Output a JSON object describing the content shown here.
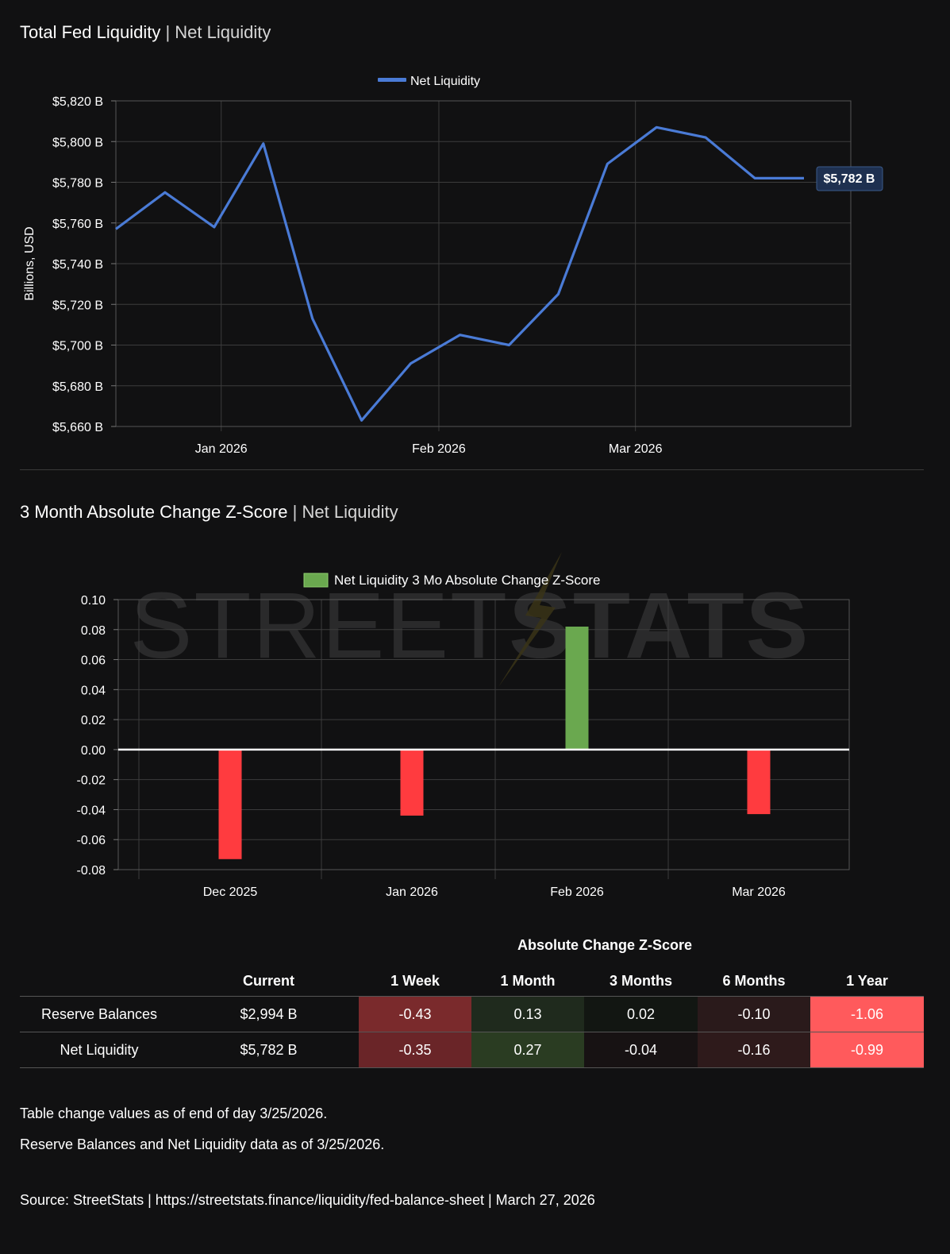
{
  "chart1": {
    "title": "Total Fed Liquidity",
    "subtitle": "Net Liquidity",
    "separator": "|",
    "legend": "Net Liquidity",
    "ylabel": "Billions, USD",
    "color": "#4a7bd6",
    "end_label": "$5,782 B"
  },
  "chart2": {
    "title": "3 Month Absolute Change Z-Score",
    "subtitle": "Net Liquidity",
    "separator": "|",
    "legend": "Net Liquidity 3 Mo Absolute Change Z-Score",
    "positive_color": "#6aa84f",
    "negative_color": "#ff3b3f",
    "watermark": "STREETSTATS"
  },
  "chart_data": [
    {
      "type": "line",
      "series": [
        {
          "name": "Net Liquidity",
          "x": [
            "2025-12-17",
            "2025-12-24",
            "2025-12-31",
            "2026-01-07",
            "2026-01-14",
            "2026-01-21",
            "2026-01-28",
            "2026-02-04",
            "2026-02-11",
            "2026-02-18",
            "2026-02-25",
            "2026-03-04",
            "2026-03-11",
            "2026-03-18",
            "2026-03-25"
          ],
          "values": [
            5757,
            5775,
            5758,
            5799,
            5713,
            5663,
            5691,
            5705,
            5700,
            5725,
            5789,
            5807,
            5802,
            5782,
            5782
          ]
        }
      ],
      "x_range": [
        "2025-12-17",
        "2026-03-25"
      ],
      "x_ticks": [
        {
          "date": "2026-01-01",
          "label": "Jan 2026"
        },
        {
          "date": "2026-02-01",
          "label": "Feb 2026"
        },
        {
          "date": "2026-03-01",
          "label": "Mar 2026"
        }
      ],
      "ylim": [
        5660,
        5820
      ],
      "y_ticks": [
        {
          "value": 5820,
          "label": "$5,820 B"
        },
        {
          "value": 5800,
          "label": "$5,800 B"
        },
        {
          "value": 5780,
          "label": "$5,780 B"
        },
        {
          "value": 5760,
          "label": "$5,760 B"
        },
        {
          "value": 5740,
          "label": "$5,740 B"
        },
        {
          "value": 5720,
          "label": "$5,720 B"
        },
        {
          "value": 5700,
          "label": "$5,700 B"
        },
        {
          "value": 5680,
          "label": "$5,680 B"
        },
        {
          "value": 5660,
          "label": "$5,660 B"
        }
      ],
      "ylabel": "Billions, USD",
      "legend_position": "top-center",
      "grid": true
    },
    {
      "type": "bar",
      "categories": [
        "Dec 2025",
        "Jan 2026",
        "Feb 2026",
        "Mar 2026"
      ],
      "series": [
        {
          "name": "Net Liquidity 3 Mo Absolute Change Z-Score",
          "values": [
            -0.073,
            -0.044,
            0.082,
            -0.043
          ]
        }
      ],
      "ylim": [
        -0.08,
        0.1
      ],
      "y_ticks": [
        {
          "value": 0.1,
          "label": "0.10"
        },
        {
          "value": 0.08,
          "label": "0.08"
        },
        {
          "value": 0.06,
          "label": "0.06"
        },
        {
          "value": 0.04,
          "label": "0.04"
        },
        {
          "value": 0.02,
          "label": "0.02"
        },
        {
          "value": 0.0,
          "label": "0.00"
        },
        {
          "value": -0.02,
          "label": "-0.02"
        },
        {
          "value": -0.04,
          "label": "-0.04"
        },
        {
          "value": -0.06,
          "label": "-0.06"
        },
        {
          "value": -0.08,
          "label": "-0.08"
        }
      ],
      "legend_position": "top-center",
      "grid": true
    }
  ],
  "table": {
    "group_header": "Absolute Change Z-Score",
    "columns": [
      "",
      "Current",
      "1 Week",
      "1 Month",
      "3 Months",
      "6 Months",
      "1 Year"
    ],
    "rows": [
      {
        "name": "Reserve Balances",
        "current": "$2,994 B",
        "cells": [
          {
            "text": "-0.43",
            "bg": "#7a2a2c"
          },
          {
            "text": "0.13",
            "bg": "#1f2a1d"
          },
          {
            "text": "0.02",
            "bg": "#121612"
          },
          {
            "text": "-0.10",
            "bg": "#2a1a1b"
          },
          {
            "text": "-1.06",
            "bg": "#ff5a5c"
          }
        ]
      },
      {
        "name": "Net Liquidity",
        "current": "$5,782 B",
        "cells": [
          {
            "text": "-0.35",
            "bg": "#6a2528"
          },
          {
            "text": "0.27",
            "bg": "#2a3c22"
          },
          {
            "text": "-0.04",
            "bg": "#171213"
          },
          {
            "text": "-0.16",
            "bg": "#2e1a1b"
          },
          {
            "text": "-0.99",
            "bg": "#ff5a5c"
          }
        ]
      }
    ]
  },
  "notes": {
    "line1": "Table change values as of end of day 3/25/2026.",
    "line2": "Reserve Balances and Net Liquidity data as of 3/25/2026.",
    "source": "Source:  StreetStats  |  https://streetstats.finance/liquidity/fed-balance-sheet  |  March 27, 2026"
  }
}
